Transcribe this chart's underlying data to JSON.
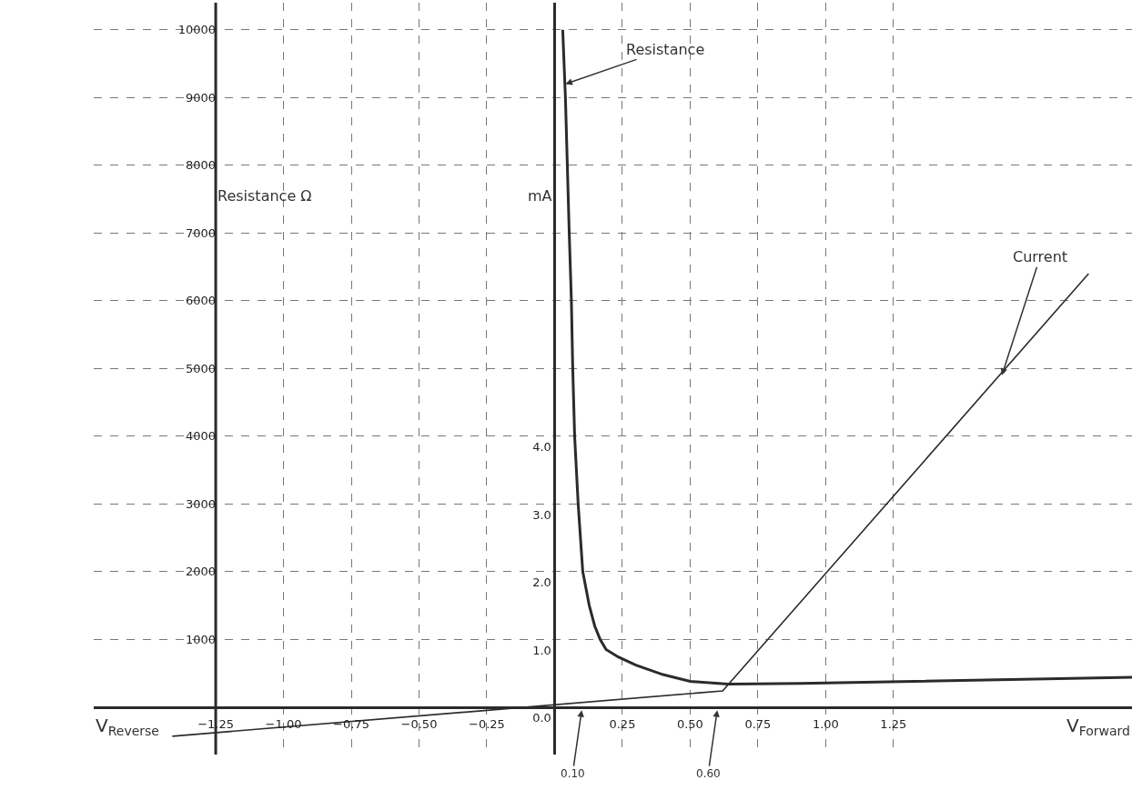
{
  "chart_data": {
    "type": "line",
    "xlim": [
      -1.7,
      2.13
    ],
    "ylim": [
      -700,
      10400
    ],
    "y2lim": [
      -0.7,
      10.4
    ],
    "xticks": [
      {
        "value": -1.25,
        "label": "−1.25"
      },
      {
        "value": -1.0,
        "label": "−1.00"
      },
      {
        "value": -0.75,
        "label": "−0.75"
      },
      {
        "value": -0.5,
        "label": "−0.50"
      },
      {
        "value": -0.25,
        "label": "−0.25"
      },
      {
        "value": 0.25,
        "label": "0.25"
      },
      {
        "value": 0.5,
        "label": "0.50"
      },
      {
        "value": 0.75,
        "label": "0.75"
      },
      {
        "value": 1.0,
        "label": "1.00"
      },
      {
        "value": 1.25,
        "label": "1.25"
      }
    ],
    "yticks": [
      1000,
      2000,
      3000,
      4000,
      5000,
      6000,
      7000,
      8000,
      9000,
      10000
    ],
    "y2ticks": [
      {
        "value": 0,
        "label": "0.0"
      },
      {
        "value": 1,
        "label": "1.0"
      },
      {
        "value": 2,
        "label": "2.0"
      },
      {
        "value": 3,
        "label": "3.0"
      },
      {
        "value": 4,
        "label": "4.0"
      }
    ],
    "ylabel": "Resistance Ω",
    "y2label": "mA",
    "series": [
      {
        "color": "#2b2b2b",
        "x": [
          0.03,
          0.04,
          0.047,
          0.054,
          0.062,
          0.067,
          0.074,
          0.087,
          0.104,
          0.128,
          0.148,
          0.168,
          0.19,
          0.235,
          0.3,
          0.4,
          0.5,
          0.64,
          0.91,
          2.13
        ],
        "values": [
          10000,
          9000,
          8000,
          7000,
          6000,
          5000,
          4000,
          3000,
          2000,
          1500,
          1200,
          1000,
          850,
          740,
          620,
          480,
          380,
          340,
          350,
          440
        ]
      },
      {
        "color": "#2b2b2b",
        "axis": "y2",
        "x": [
          -1.41,
          0.62,
          1.97
        ],
        "values": [
          -0.43,
          0.24,
          6.4
        ]
      }
    ],
    "annotations": [
      {
        "text": "Resistance",
        "x": 0.04,
        "y": 9200
      },
      {
        "text": "Current",
        "x": 1.65,
        "y": 4900
      },
      "0.10",
      "0.60",
      "V$_{Reverse}$",
      "V$_{Forward}$"
    ],
    "ref_lines": [
      {
        "axis": "x",
        "value": -1.25,
        "color": "#2b2b2b"
      }
    ],
    "grid": true,
    "marker": "none",
    "line_style": "solid"
  }
}
